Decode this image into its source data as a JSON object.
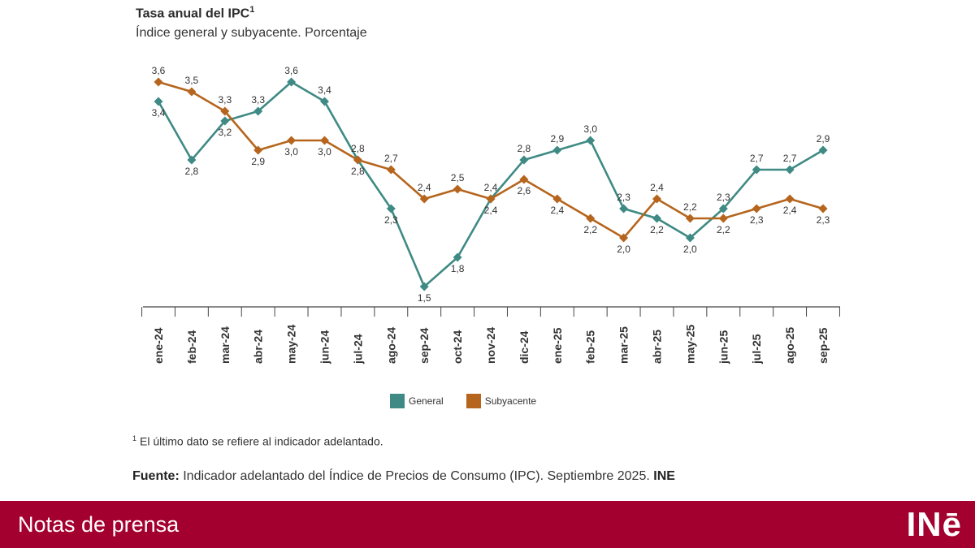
{
  "header": {
    "title": "Tasa anual del IPC",
    "title_sup": "1",
    "subtitle": "Índice general y subyacente. Porcentaje"
  },
  "chart_data": {
    "type": "line",
    "title": "Tasa anual del IPC",
    "subtitle": "Índice general y subyacente. Porcentaje",
    "xlabel": "",
    "ylabel": "",
    "categories": [
      "ene-24",
      "feb-24",
      "mar-24",
      "abr-24",
      "may-24",
      "jun-24",
      "jul-24",
      "ago-24",
      "sep-24",
      "oct-24",
      "nov-24",
      "dic-24",
      "ene-25",
      "feb-25",
      "mar-25",
      "abr-25",
      "may-25",
      "jun-25",
      "jul-25",
      "ago-25",
      "sep-25"
    ],
    "series": [
      {
        "name": "General",
        "color": "#3f8a84",
        "values": [
          3.4,
          2.8,
          3.2,
          3.3,
          3.6,
          3.4,
          2.8,
          2.3,
          1.5,
          1.8,
          2.4,
          2.8,
          2.9,
          3.0,
          2.3,
          2.2,
          2.0,
          2.3,
          2.7,
          2.7,
          2.9
        ]
      },
      {
        "name": "Subyacente",
        "color": "#b5651d",
        "values": [
          3.6,
          3.5,
          3.3,
          2.9,
          3.0,
          3.0,
          2.8,
          2.7,
          2.4,
          2.5,
          2.4,
          2.6,
          2.4,
          2.2,
          2.0,
          2.4,
          2.2,
          2.2,
          2.3,
          2.4,
          2.3
        ]
      }
    ],
    "ylim": [
      1.5,
      3.6
    ],
    "grid": false,
    "legend_position": "bottom"
  },
  "legend": {
    "general_label": "General",
    "subyacente_label": "Subyacente"
  },
  "footnote": {
    "sup": "1",
    "text": "El último dato se refiere al indicador adelantado."
  },
  "source": {
    "prefix": "Fuente:",
    "text": "Indicador adelantado del Índice de Precios de Consumo (IPC). Septiembre 2025.",
    "org": "INE"
  },
  "footer": {
    "label": "Notas de prensa",
    "logo": "INē"
  }
}
